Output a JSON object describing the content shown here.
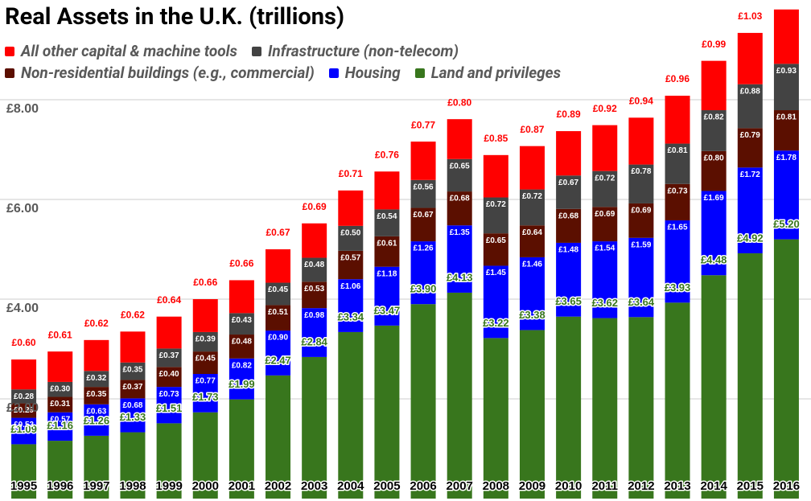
{
  "chart_data": {
    "type": "stacked_bar",
    "title": "Real Assets in the U.K. (trillions)",
    "categories": [
      "1995",
      "1996",
      "1997",
      "1998",
      "1999",
      "2000",
      "2001",
      "2002",
      "2003",
      "2004",
      "2005",
      "2006",
      "2007",
      "2008",
      "2009",
      "2010",
      "2011",
      "2012",
      "2013",
      "2014",
      "2015",
      "2016"
    ],
    "series": [
      {
        "name": "Land and privileges",
        "color": "#38761d",
        "values": [
          1.09,
          1.16,
          1.26,
          1.33,
          1.51,
          1.73,
          1.99,
          2.47,
          2.84,
          3.34,
          3.47,
          3.9,
          4.13,
          3.22,
          3.38,
          3.65,
          3.62,
          3.64,
          3.93,
          4.48,
          4.92,
          5.2
        ],
        "value_labels": [
          "£1.09",
          "£1.16",
          "£1.26",
          "£1.33",
          "£1.51",
          "£1.73",
          "£1.99",
          "£2.47",
          "£2.84",
          "£3.34",
          "£3.47",
          "£3.90",
          "£4.13",
          "£3.22",
          "£3.38",
          "£3.65",
          "£3.62",
          "£3.64",
          "£3.93",
          "£4.48",
          "£4.92",
          "£5.20"
        ]
      },
      {
        "name": "Housing",
        "color": "#0000ff",
        "values": [
          0.53,
          0.57,
          0.63,
          0.68,
          0.73,
          0.77,
          0.82,
          0.9,
          0.98,
          1.06,
          1.18,
          1.26,
          1.35,
          1.45,
          1.46,
          1.48,
          1.54,
          1.59,
          1.65,
          1.69,
          1.72,
          1.78
        ],
        "value_labels": [
          "£0.53",
          "£0.57",
          "£0.63",
          "£0.68",
          "£0.73",
          "£0.77",
          "£0.82",
          "£0.90",
          "£0.98",
          "£1.06",
          "£1.18",
          "£1.26",
          "£1.35",
          "£1.45",
          "£1.46",
          "£1.48",
          "£1.54",
          "£1.59",
          "£1.65",
          "£1.69",
          "£1.72",
          "£1.78"
        ]
      },
      {
        "name": "Non-residential buildings (e.g., commercial)",
        "color": "#5b0f00",
        "values": [
          0.29,
          0.31,
          0.35,
          0.37,
          0.4,
          0.45,
          0.48,
          0.51,
          0.53,
          0.57,
          0.61,
          0.67,
          0.68,
          0.65,
          0.64,
          0.68,
          0.69,
          0.69,
          0.73,
          0.8,
          0.79,
          0.81
        ],
        "value_labels": [
          "£0.29",
          "£0.31",
          "£0.35",
          "£0.37",
          "£0.40",
          "£0.45",
          "£0.48",
          "£0.51",
          "£0.53",
          "£0.57",
          "£0.61",
          "£0.67",
          "£0.68",
          "£0.65",
          "£0.64",
          "£0.68",
          "£0.69",
          "£0.69",
          "£0.73",
          "£0.80",
          "£0.79",
          "£0.81"
        ]
      },
      {
        "name": "Infrastructure (non-telecom)",
        "color": "#434343",
        "values": [
          0.28,
          0.3,
          0.32,
          0.35,
          0.37,
          0.39,
          0.43,
          0.45,
          0.48,
          0.5,
          0.54,
          0.56,
          0.65,
          0.72,
          0.72,
          0.67,
          0.72,
          0.78,
          0.81,
          0.82,
          0.88,
          0.93
        ],
        "value_labels": [
          "£0.28",
          "£0.30",
          "£0.32",
          "£0.35",
          "£0.37",
          "£0.39",
          "£0.43",
          "£0.45",
          "£0.48",
          "£0.50",
          "£0.54",
          "£0.56",
          "£0.65",
          "£0.72",
          "£0.72",
          "£0.67",
          "£0.72",
          "£0.78",
          "£0.81",
          "£0.82",
          "£0.88",
          "£0.93"
        ]
      },
      {
        "name": "All other capital & machine tools",
        "color": "#ff0000",
        "values": [
          0.6,
          0.61,
          0.62,
          0.62,
          0.64,
          0.66,
          0.66,
          0.67,
          0.69,
          0.71,
          0.76,
          0.77,
          0.8,
          0.85,
          0.87,
          0.89,
          0.92,
          0.94,
          0.96,
          0.99,
          1.03,
          1.09
        ],
        "value_labels": [
          "£0.60",
          "£0.61",
          "£0.62",
          "£0.62",
          "£0.64",
          "£0.66",
          "£0.66",
          "£0.67",
          "£0.69",
          "£0.71",
          "£0.76",
          "£0.77",
          "£0.80",
          "£0.85",
          "£0.87",
          "£0.89",
          "£0.92",
          "£0.94",
          "£0.96",
          "£0.99",
          "£1.03",
          null
        ]
      }
    ],
    "ylim": [
      0,
      10
    ],
    "yticks": [
      {
        "value": 2,
        "label": "£2.00"
      },
      {
        "value": 4,
        "label": "£4.00"
      },
      {
        "value": 6,
        "label": "£6.00"
      },
      {
        "value": 8,
        "label": "£8.00"
      }
    ],
    "grid": true,
    "legend": "top-left"
  }
}
